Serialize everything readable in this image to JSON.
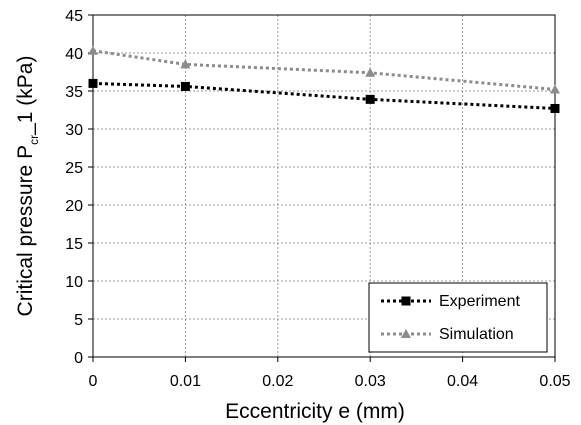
{
  "chart_data": {
    "type": "line",
    "xlabel": "Eccentricity e (mm)",
    "ylabel": {
      "prefix": "Critical pressure P",
      "subscript": "cr",
      "suffix": "_1 (kPa)"
    },
    "xlim": [
      0,
      0.05
    ],
    "ylim": [
      0,
      45
    ],
    "x_ticks": [
      "0",
      "0.01",
      "0.02",
      "0.03",
      "0.04",
      "0.05"
    ],
    "y_ticks": [
      "0",
      "5",
      "10",
      "15",
      "20",
      "25",
      "30",
      "35",
      "40",
      "45"
    ],
    "grid": true,
    "legend_position": "bottom-right",
    "series": [
      {
        "name": "Experiment",
        "marker": "square",
        "line_style": "dotted",
        "color": "#000000",
        "x": [
          0,
          0.01,
          0.03,
          0.05
        ],
        "y": [
          36.0,
          35.6,
          33.9,
          32.7
        ]
      },
      {
        "name": "Simulation",
        "marker": "triangle",
        "line_style": "dotted",
        "color": "#8c8c8c",
        "x": [
          0,
          0.01,
          0.03,
          0.05
        ],
        "y": [
          40.3,
          38.5,
          37.4,
          35.2
        ]
      }
    ]
  }
}
